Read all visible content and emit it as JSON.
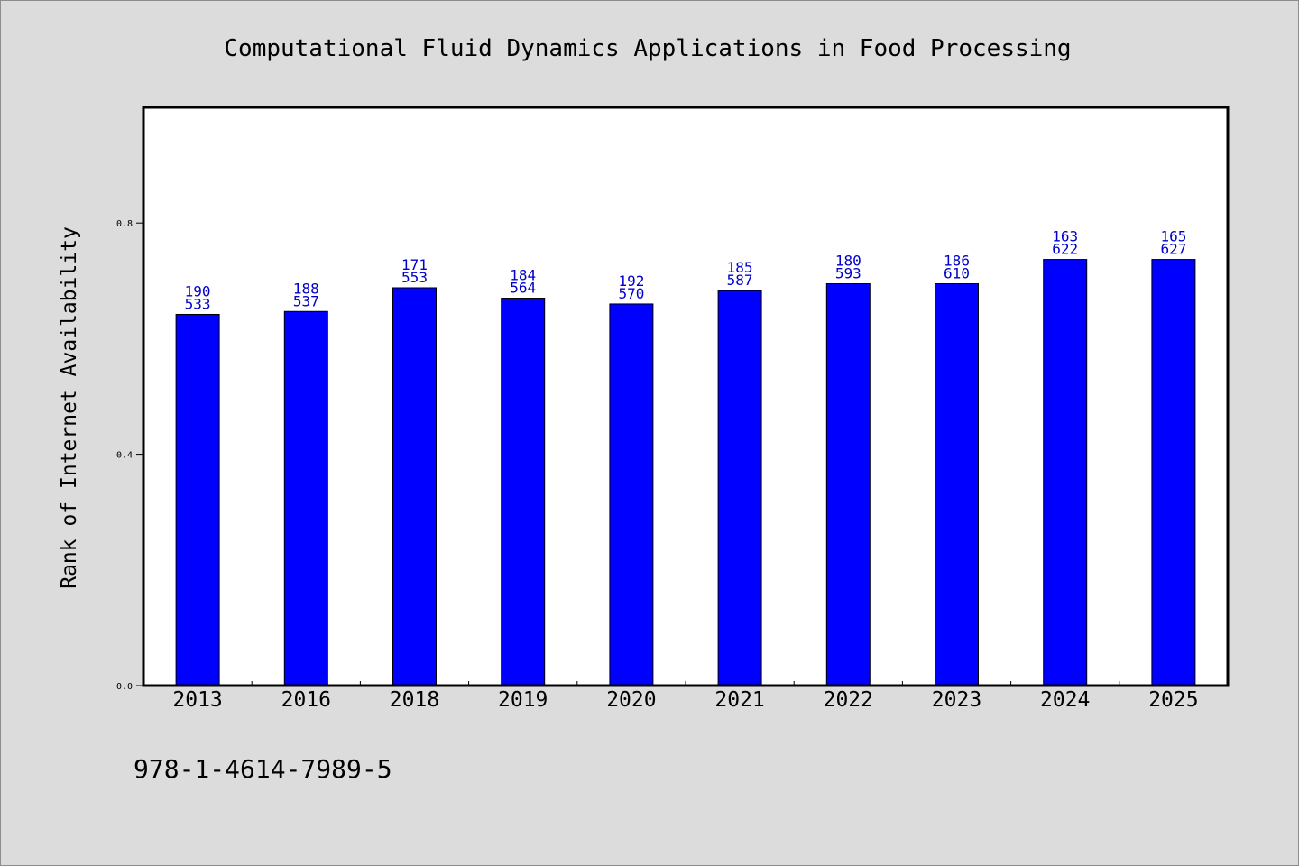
{
  "chart_data": {
    "type": "bar",
    "title": "Computational Fluid Dynamics Applications in Food Processing",
    "xlabel": "",
    "ylabel": "Rank of Internet Availability",
    "categories": [
      "2013",
      "2016",
      "2018",
      "2019",
      "2020",
      "2021",
      "2022",
      "2023",
      "2024",
      "2025"
    ],
    "values": [
      0.642,
      0.647,
      0.688,
      0.67,
      0.66,
      0.683,
      0.695,
      0.695,
      0.737,
      0.737
    ],
    "data_labels": [
      [
        "190",
        "533"
      ],
      [
        "188",
        "537"
      ],
      [
        "171",
        "553"
      ],
      [
        "184",
        "564"
      ],
      [
        "192",
        "570"
      ],
      [
        "185",
        "587"
      ],
      [
        "180",
        "593"
      ],
      [
        "186",
        "610"
      ],
      [
        "163",
        "622"
      ],
      [
        "165",
        "627"
      ]
    ],
    "ylim": [
      0,
      1.0
    ],
    "yticks": [
      0.0,
      0.4,
      0.8
    ],
    "ytick_labels": [
      "0.0",
      "0.4",
      "0.8"
    ],
    "grid": false,
    "bar_color": "#0000ff",
    "label_color": "#0000cc"
  },
  "footer": {
    "isbn": "978-1-4614-7989-5"
  }
}
